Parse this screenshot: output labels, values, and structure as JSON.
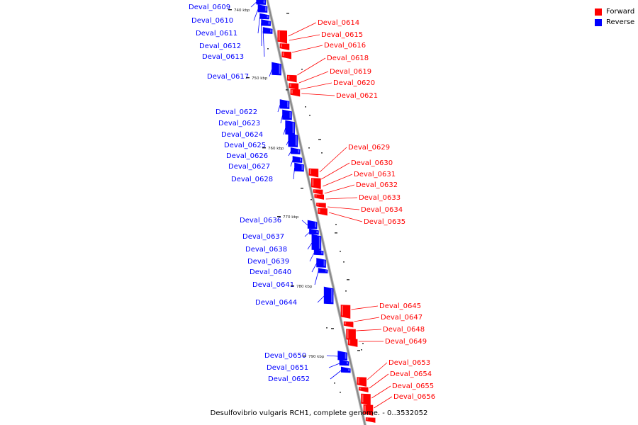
{
  "colors": {
    "forward": "#ff0000",
    "reverse": "#0000ff",
    "axis": "#888888"
  },
  "legend": [
    {
      "label": "Forward",
      "color": "#ff0000"
    },
    {
      "label": "Reverse",
      "color": "#0000ff"
    }
  ],
  "caption": "Desulfovibrio vulgaris RCH1, complete genome. - 0..3532052",
  "ticks": [
    "740 kbp",
    "750 kbp",
    "760 kbp",
    "770 kbp",
    "780 kbp",
    "790 kbp"
  ],
  "forward_genes": [
    "Deval_0614",
    "Deval_0615",
    "Deval_0616",
    "Deval_0618",
    "Deval_0619",
    "Deval_0620",
    "Deval_0621",
    "Deval_0629",
    "Deval_0630",
    "Deval_0631",
    "Deval_0632",
    "Deval_0633",
    "Deval_0634",
    "Deval_0635",
    "Deval_0645",
    "Deval_0647",
    "Deval_0648",
    "Deval_0649",
    "Deval_0653",
    "Deval_0654",
    "Deval_0655",
    "Deval_0656"
  ],
  "reverse_genes": [
    "Deval_0609",
    "Deval_0610",
    "Deval_0611",
    "Deval_0612",
    "Deval_0613",
    "Deval_0617",
    "Deval_0622",
    "Deval_0623",
    "Deval_0624",
    "Deval_0625",
    "Deval_0626",
    "Deval_0627",
    "Deval_0628",
    "Deval_0636",
    "Deval_0637",
    "Deval_0638",
    "Deval_0639",
    "Deval_0640",
    "Deval_0641",
    "Deval_0644",
    "Deval_0650",
    "Deval_0651",
    "Deval_0652"
  ]
}
